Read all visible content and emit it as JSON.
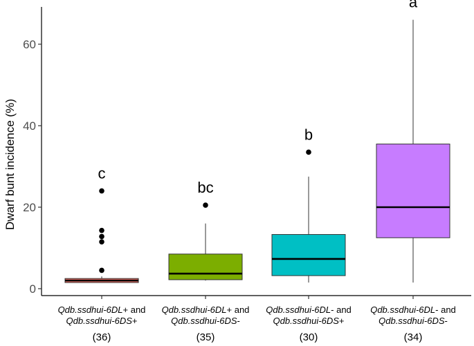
{
  "chart_data": {
    "type": "box",
    "ylabel": "Dwarf bunt incidence (%)",
    "xlabel": "",
    "ylim": [
      -2,
      70
    ],
    "yticks": [
      0,
      20,
      40,
      60
    ],
    "grid": false,
    "categories": [
      {
        "line1_gene": "Qdb.ssdhui-6DL",
        "line1_sign": "+ and",
        "line2_gene": "Qdb.ssdhui-6DS",
        "line2_sign": "+",
        "n": "(36)",
        "letter": "c",
        "color": "#F8766D",
        "stats": {
          "min": 1.5,
          "q1": 1.5,
          "median": 2.0,
          "q3": 2.5,
          "max": 3.0
        },
        "outliers": [
          4.5,
          11.5,
          12.8,
          14.3,
          24.0
        ]
      },
      {
        "line1_gene": "Qdb.ssdhui-6DL",
        "line1_sign": "+ and",
        "line2_gene": "Qdb.ssdhui-6DS",
        "line2_sign": "-",
        "n": "(35)",
        "letter": "bc",
        "color": "#7CAE00",
        "stats": {
          "min": 2.0,
          "q1": 2.2,
          "median": 3.7,
          "q3": 8.5,
          "max": 16.0
        },
        "outliers": [
          20.5
        ]
      },
      {
        "line1_gene": "Qdb.ssdhui-6DL",
        "line1_sign": "- and",
        "line2_gene": "Qdb.ssdhui-6DS",
        "line2_sign": "+",
        "n": "(30)",
        "letter": "b",
        "color": "#00BFC4",
        "stats": {
          "min": 1.5,
          "q1": 3.2,
          "median": 7.3,
          "q3": 13.3,
          "max": 27.5
        },
        "outliers": [
          33.5
        ]
      },
      {
        "line1_gene": "Qdb.ssdhui-6DL",
        "line1_sign": "- and",
        "line2_gene": "Qdb.ssdhui-6DS",
        "line2_sign": "-",
        "n": "(34)",
        "letter": "a",
        "color": "#C77CFF",
        "stats": {
          "min": 1.5,
          "q1": 12.5,
          "median": 20.0,
          "q3": 35.5,
          "max": 66.0
        },
        "outliers": []
      }
    ]
  }
}
